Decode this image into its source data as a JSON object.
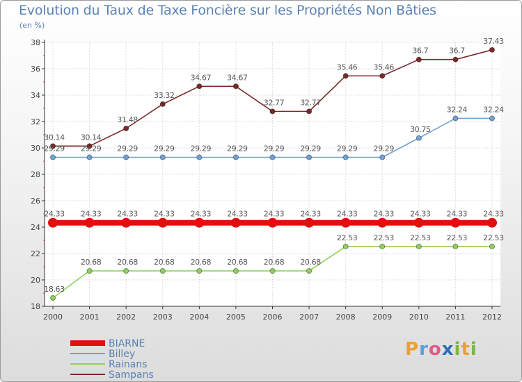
{
  "header": {
    "title": "Evolution du Taux de Taxe Foncière sur les Propriétés Non Bâties",
    "unit": "(en %)"
  },
  "logo": {
    "text": "Proxiti",
    "letters": [
      "P",
      "r",
      "o",
      "x",
      "i",
      "t",
      "i"
    ],
    "letter_colors": [
      "#e8a13a",
      "#5aa0d8",
      "#e05a8a",
      "#2f6fb5",
      "#7ab648",
      "#e8a13a",
      "#7ab648"
    ]
  },
  "chart_data": {
    "type": "line",
    "title": "Evolution du Taux de Taxe Foncière sur les Propriétés Non Bâties",
    "ylabel": "(en %)",
    "x": [
      "2000",
      "2001",
      "2002",
      "2003",
      "2004",
      "2005",
      "2006",
      "2007",
      "2008",
      "2009",
      "2010",
      "2011",
      "2012"
    ],
    "ylim": [
      18,
      38
    ],
    "yticks": [
      18,
      20,
      22,
      24,
      26,
      28,
      30,
      32,
      34,
      36,
      38
    ],
    "grid": true,
    "legend": "bottom-left",
    "series": [
      {
        "name": "BIARNE",
        "color": "#e01010",
        "values": [
          24.33,
          24.33,
          24.33,
          24.33,
          24.33,
          24.33,
          24.33,
          24.33,
          24.33,
          24.33,
          24.33,
          24.33,
          24.33
        ],
        "labels": [
          "24.33",
          "24.33",
          "24.33",
          "24.33",
          "24.33",
          "24.33",
          "24.33",
          "24.33",
          "24.33",
          "24.33",
          "24.33",
          "24.33",
          "24.33"
        ]
      },
      {
        "name": "Billey",
        "color": "#6fa3d6",
        "values": [
          29.29,
          29.29,
          29.29,
          29.29,
          29.29,
          29.29,
          29.29,
          29.29,
          29.29,
          29.29,
          30.75,
          32.24,
          32.24
        ],
        "labels": [
          "29.29",
          "29.29",
          "29.29",
          "29.29",
          "29.29",
          "29.29",
          "29.29",
          "29.29",
          "29.29",
          "29.29",
          "30.75",
          "32.24",
          "32.24"
        ]
      },
      {
        "name": "Rainans",
        "color": "#8fd05a",
        "values": [
          18.63,
          20.68,
          20.68,
          20.68,
          20.68,
          20.68,
          20.68,
          20.68,
          22.53,
          22.53,
          22.53,
          22.53,
          22.53
        ],
        "labels": [
          "18.63",
          "20.68",
          "20.68",
          "20.68",
          "20.68",
          "20.68",
          "20.68",
          "20.68",
          "22.53",
          "22.53",
          "22.53",
          "22.53",
          "22.53"
        ]
      },
      {
        "name": "Sampans",
        "color": "#7a2a2a",
        "values": [
          30.14,
          30.14,
          31.48,
          33.32,
          34.67,
          34.67,
          32.77,
          32.77,
          35.46,
          35.46,
          36.7,
          36.7,
          37.43
        ],
        "labels": [
          "30.14",
          "30.14",
          "31.48",
          "33.32",
          "34.67",
          "34.67",
          "32.77",
          "32.77",
          "35.46",
          "35.46",
          "36.7",
          "36.7",
          "37.43"
        ]
      }
    ]
  }
}
